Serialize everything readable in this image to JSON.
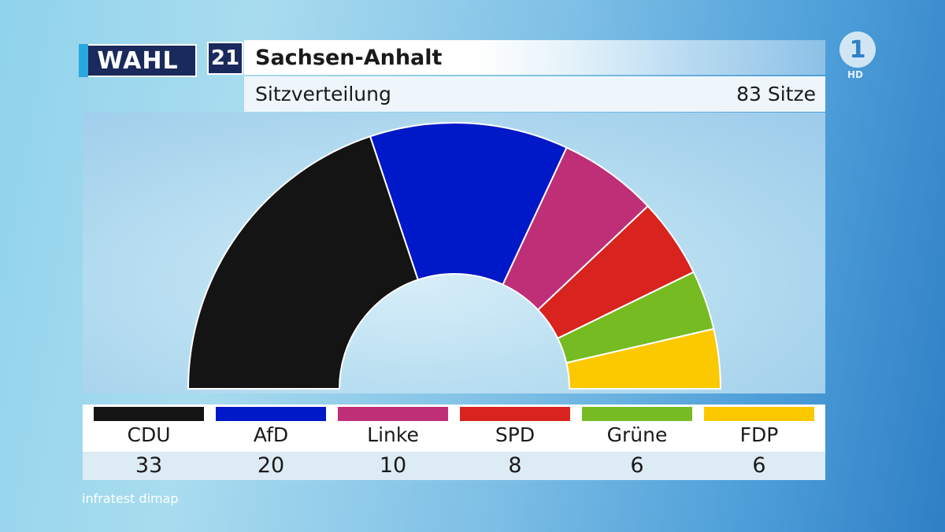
{
  "header": {
    "logo_text": "WAHL",
    "logo_year": "21",
    "title": "Sachsen-Anhalt",
    "subtitle": "Sitzverteilung",
    "total_label": "83 Sitze"
  },
  "channel": {
    "logo_text": "1",
    "hd_label": "HD"
  },
  "source": "infratest dimap",
  "chart_data": {
    "type": "pie",
    "variant": "semicircle",
    "total_seats": 83,
    "categories": [
      "CDU",
      "AfD",
      "Linke",
      "SPD",
      "Grüne",
      "FDP"
    ],
    "values": [
      33,
      20,
      10,
      8,
      6,
      6
    ],
    "colors": [
      "#141414",
      "#0019c8",
      "#bf2f77",
      "#d8231f",
      "#76bb22",
      "#fcc800"
    ]
  }
}
